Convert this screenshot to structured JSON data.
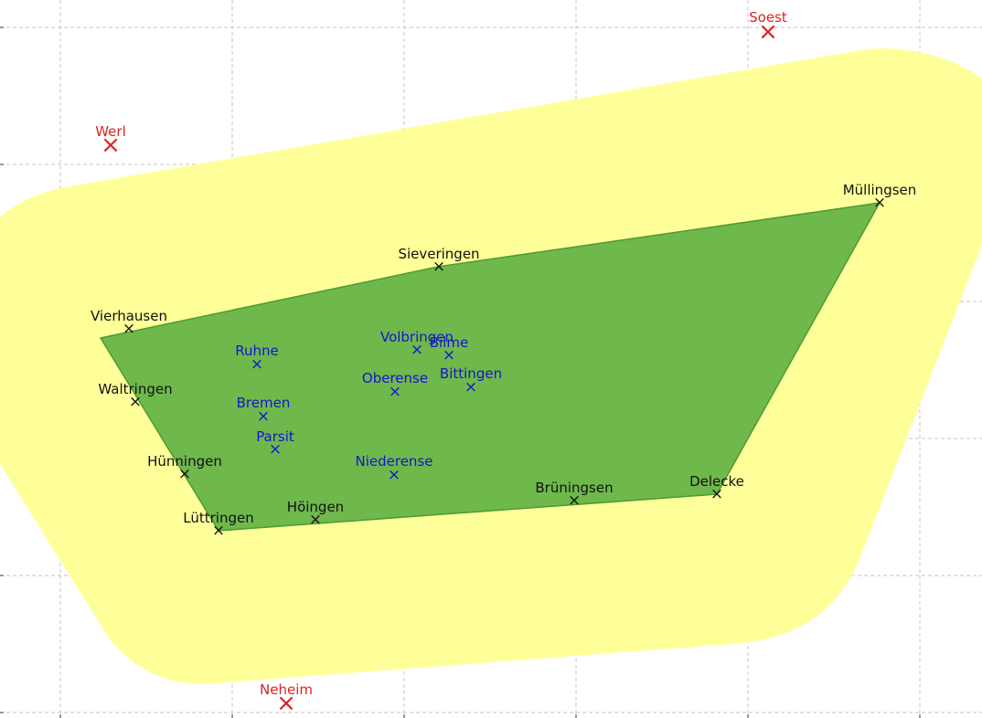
{
  "colors": {
    "buffer_fill": "#ffff99",
    "hull_fill": "#6fb84c",
    "hull_stroke": "#4f9a33",
    "boundary_marker": "#111111",
    "interior_marker": "#1515cc",
    "outside_marker": "#dd2222"
  },
  "boundary_places": [
    {
      "name": "Vierhausen"
    },
    {
      "name": "Sieveringen"
    },
    {
      "name": "Müllingsen"
    },
    {
      "name": "Delecke"
    },
    {
      "name": "Brüningsen"
    },
    {
      "name": "Höingen"
    },
    {
      "name": "Lüttringen"
    },
    {
      "name": "Hünningen"
    },
    {
      "name": "Waltringen"
    }
  ],
  "interior_places": [
    {
      "name": "Volbringen"
    },
    {
      "name": "Bilme"
    },
    {
      "name": "Ruhne"
    },
    {
      "name": "Oberense"
    },
    {
      "name": "Bittingen"
    },
    {
      "name": "Bremen"
    },
    {
      "name": "Parsit"
    },
    {
      "name": "Niederense"
    }
  ],
  "outside_places": [
    {
      "name": "Soest"
    },
    {
      "name": "Werl"
    },
    {
      "name": "Neheim"
    }
  ]
}
